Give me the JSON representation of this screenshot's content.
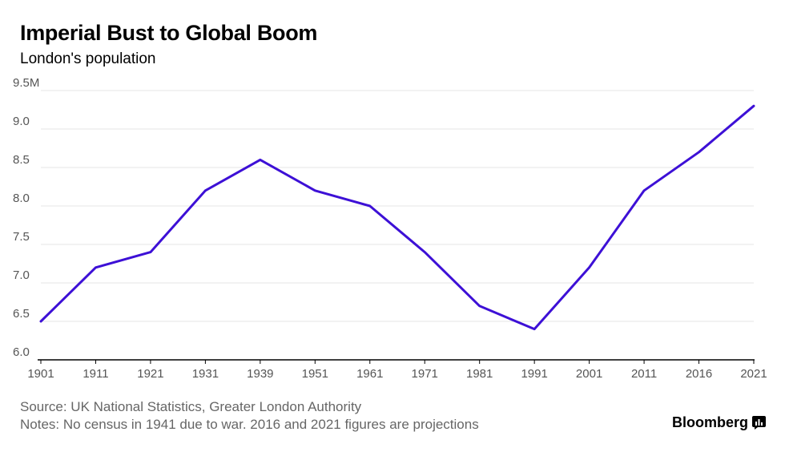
{
  "header": {
    "title": "Imperial Bust to Global Boom",
    "subtitle": "London's population"
  },
  "footer": {
    "source": "Source: UK National Statistics, Greater London Authority",
    "notes": "Notes: No census in 1941 due to war. 2016 and 2021 figures are projections",
    "brand": "Bloomberg"
  },
  "colors": {
    "line": "#3d10d6",
    "grid": "#e6e6e6",
    "axis": "#000000",
    "tick_text": "#555555"
  },
  "chart_data": {
    "type": "line",
    "title": "Imperial Bust to Global Boom",
    "subtitle": "London's population",
    "xlabel": "",
    "ylabel": "",
    "x": [
      "1901",
      "1911",
      "1921",
      "1931",
      "1939",
      "1951",
      "1961",
      "1971",
      "1981",
      "1991",
      "2001",
      "2011",
      "2016",
      "2021"
    ],
    "series": [
      {
        "name": "London's population",
        "values": [
          6.5,
          7.2,
          7.4,
          8.2,
          8.6,
          8.2,
          8.0,
          7.4,
          6.7,
          6.4,
          7.2,
          8.2,
          8.7,
          9.3
        ]
      }
    ],
    "ylim": [
      6.0,
      9.5
    ],
    "y_ticks": [
      6.0,
      6.5,
      7.0,
      7.5,
      8.0,
      8.5,
      9.0,
      9.5
    ],
    "y_tick_labels": [
      "6.0",
      "6.5",
      "7.0",
      "7.5",
      "8.0",
      "8.5",
      "9.0",
      "9.5M"
    ],
    "grid": true,
    "legend": "none"
  }
}
